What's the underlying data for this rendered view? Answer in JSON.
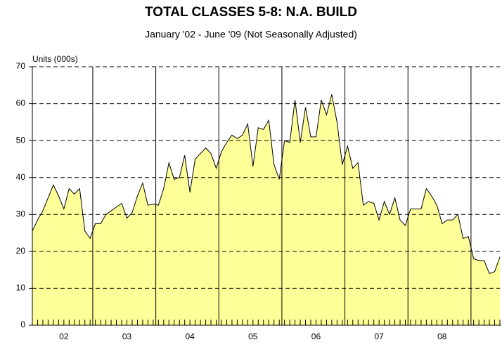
{
  "chart_data": {
    "type": "area",
    "title": "TOTAL CLASSES 5-8: N.A. BUILD",
    "subtitle": "January '02 - June '09 (Not Seasonally Adjusted)",
    "y_label": "Units (000s)",
    "categories": [
      null,
      null,
      null,
      null,
      null,
      null,
      "02",
      null,
      null,
      null,
      null,
      null,
      null,
      null,
      null,
      null,
      null,
      null,
      "03",
      null,
      null,
      null,
      null,
      null,
      null,
      null,
      null,
      null,
      null,
      null,
      "04",
      null,
      null,
      null,
      null,
      null,
      null,
      null,
      null,
      null,
      null,
      null,
      "05",
      null,
      null,
      null,
      null,
      null,
      null,
      null,
      null,
      null,
      null,
      null,
      "06",
      null,
      null,
      null,
      null,
      null,
      null,
      null,
      null,
      null,
      null,
      null,
      "07",
      null,
      null,
      null,
      null,
      null,
      null,
      null,
      null,
      null,
      null,
      null,
      "08",
      null,
      null,
      null,
      null,
      null,
      null,
      null,
      null,
      null,
      null,
      null
    ],
    "values": [
      25.5,
      28.5,
      31,
      34.5,
      38,
      35,
      31.5,
      37,
      35.5,
      37,
      25.5,
      23.5,
      27.5,
      27.5,
      30,
      31,
      32,
      33,
      29,
      30.5,
      35,
      38.5,
      32.5,
      32.8,
      32.5,
      37,
      44,
      39.5,
      40,
      46,
      36,
      45,
      46.5,
      48,
      46.5,
      42.5,
      47,
      49.5,
      51.5,
      50.5,
      51.5,
      54.5,
      43,
      53.5,
      53,
      55.5,
      43.5,
      39.5,
      50,
      49.5,
      61,
      49.5,
      59,
      51,
      51,
      61,
      57,
      62.5,
      55,
      43.5,
      48.5,
      42.5,
      44,
      32.5,
      33.5,
      33,
      28.5,
      33.5,
      30,
      34.5,
      28.5,
      27,
      31.5,
      31.5,
      31.5,
      37,
      35,
      32.5,
      27.5,
      28.5,
      28.5,
      30,
      23.5,
      24,
      18,
      17.5,
      17.5,
      14,
      14.5,
      18.5
    ],
    "color": "#ffff99",
    "ylim": [
      0,
      70
    ],
    "yticks": [
      0,
      10,
      20,
      30,
      40,
      50,
      60,
      70
    ],
    "grid": true
  }
}
